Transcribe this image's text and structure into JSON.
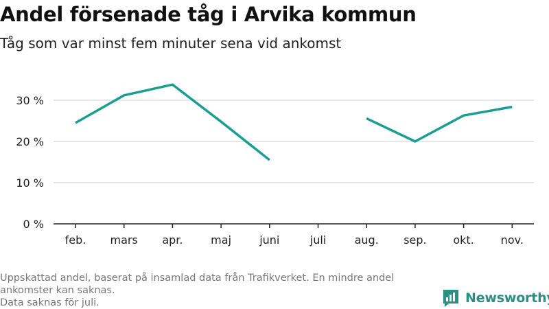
{
  "header": {
    "title": "Andel försenade tåg i Arvika kommun",
    "subtitle": "Tåg som var minst fem minuter sena vid ankomst"
  },
  "footer": {
    "note_line1": "Uppskattad andel, baserat på insamlad data från Trafikverket. En mindre andel ankomster kan saknas.",
    "note_line2": "Data saknas för juli.",
    "brand": "Newsworthy"
  },
  "colors": {
    "line": "#1a9e92",
    "grid": "#dddddd",
    "axis": "#222222",
    "brand": "#2b8f84"
  },
  "icons": {
    "logo": "newsworthy-bar-chart-icon"
  },
  "chart_data": {
    "type": "line",
    "title": "Andel försenade tåg i Arvika kommun",
    "subtitle": "Tåg som var minst fem minuter sena vid ankomst",
    "categories": [
      "feb.",
      "mars",
      "apr.",
      "maj",
      "juni",
      "juli",
      "aug.",
      "sep.",
      "okt.",
      "nov."
    ],
    "series": [
      {
        "values": [
          24.5,
          31.2,
          33.8,
          24.8,
          15.5,
          null,
          25.6,
          20.0,
          26.3,
          28.4
        ]
      }
    ],
    "y_ticks": [
      0,
      10,
      20,
      30
    ],
    "y_tick_labels": [
      "0 %",
      "10 %",
      "20 %",
      "30 %"
    ],
    "ylim": [
      0,
      37
    ],
    "grid": true,
    "legend": "none"
  }
}
